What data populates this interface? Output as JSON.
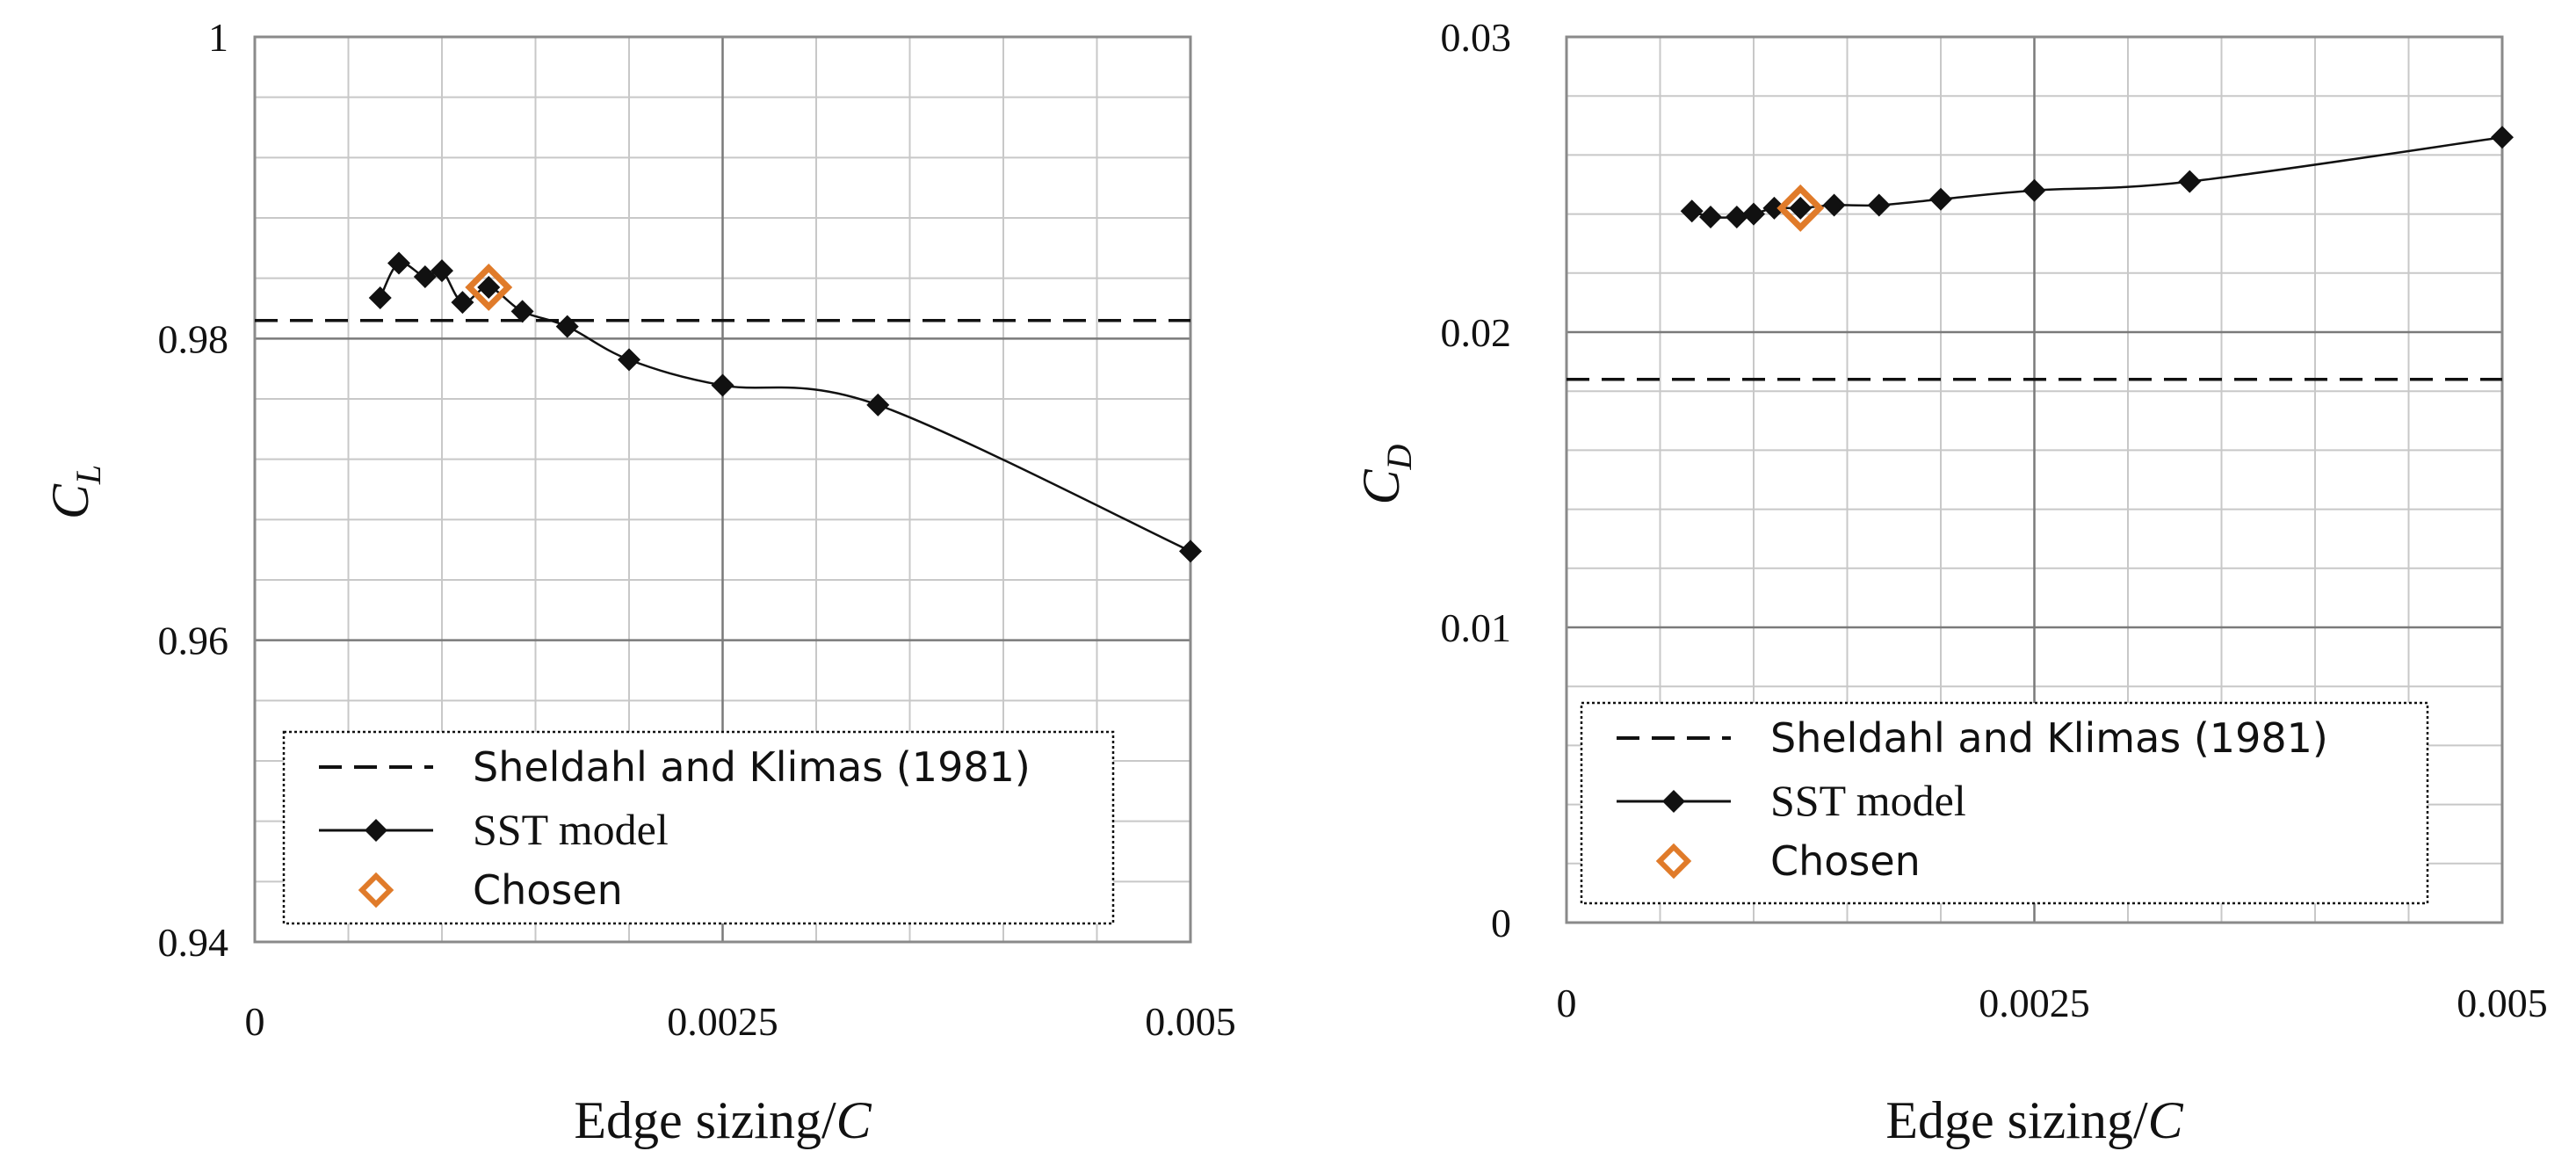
{
  "colors": {
    "grid_minor": "#c8c8c8",
    "grid_major": "#7a7a7a",
    "frame": "#8a8a8a",
    "series": "#111111",
    "chosen": "#e07b2a"
  },
  "chart_data": [
    {
      "type": "line",
      "name": "lift",
      "xlabel_prefix": "Edge sizing/",
      "xlabel_var": "C",
      "ylabel_main": "C",
      "ylabel_sub": "L",
      "xlim": [
        0,
        0.005
      ],
      "ylim": [
        0.94,
        1.0
      ],
      "xticks": [
        0,
        0.0025,
        0.005
      ],
      "xtick_labels": [
        "0",
        "0.0025",
        "0.005"
      ],
      "yticks": [
        0.94,
        0.96,
        0.98,
        1.0
      ],
      "ytick_labels": [
        "0.94",
        "0.96",
        "0.98",
        "1"
      ],
      "series": [
        {
          "name": "SST model",
          "x": [
            0.00067,
            0.00077,
            0.00091,
            0.001,
            0.00111,
            0.00125,
            0.00143,
            0.00167,
            0.002,
            0.0025,
            0.00333,
            0.005
          ],
          "y": [
            0.9827,
            0.985,
            0.9841,
            0.9845,
            0.9824,
            0.9834,
            0.9818,
            0.9808,
            0.9786,
            0.9769,
            0.9756,
            0.9659
          ]
        }
      ],
      "reference_line": {
        "name": "Sheldahl and Klimas (1981)",
        "y": 0.9812
      },
      "chosen": {
        "name": "Chosen",
        "x": 0.00125,
        "y": 0.9834
      },
      "legend": [
        "Sheldahl and Klimas (1981)",
        "SST model",
        "Chosen"
      ]
    },
    {
      "type": "line",
      "name": "drag",
      "xlabel_prefix": "Edge sizing/",
      "xlabel_var": "C",
      "ylabel_main": "C",
      "ylabel_sub": "D",
      "xlim": [
        0,
        0.005
      ],
      "ylim": [
        0,
        0.03
      ],
      "xticks": [
        0,
        0.0025,
        0.005
      ],
      "xtick_labels": [
        "0",
        "0.0025",
        "0.005"
      ],
      "yticks": [
        0,
        0.01,
        0.02,
        0.03
      ],
      "ytick_labels": [
        "0",
        "0.01",
        "0.02",
        "0.03"
      ],
      "series": [
        {
          "name": "SST model",
          "x": [
            0.00067,
            0.00077,
            0.00091,
            0.001,
            0.00111,
            0.00125,
            0.00143,
            0.00167,
            0.002,
            0.0025,
            0.00333,
            0.005
          ],
          "y": [
            0.0241,
            0.0239,
            0.0239,
            0.024,
            0.0242,
            0.0242,
            0.0243,
            0.0243,
            0.0245,
            0.0248,
            0.0251,
            0.0266
          ]
        }
      ],
      "reference_line": {
        "name": "Sheldahl and Klimas (1981)",
        "y": 0.0184
      },
      "chosen": {
        "name": "Chosen",
        "x": 0.00125,
        "y": 0.0242
      },
      "legend": [
        "Sheldahl and Klimas (1981)",
        "SST model",
        "Chosen"
      ]
    }
  ]
}
